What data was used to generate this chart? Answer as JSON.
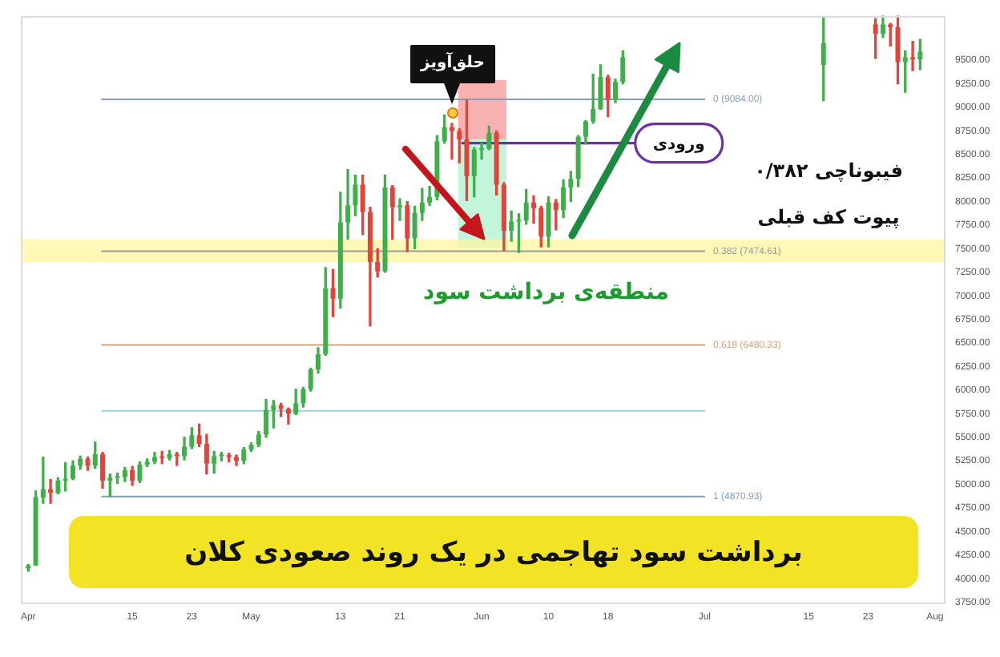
{
  "chart_data": {
    "type": "candlestick",
    "title": "برداشت سود تهاجمی در یک روند صعودی کلان",
    "x": [
      "--04-01",
      "--04-02",
      "--04-03",
      "--04-04",
      "--04-05",
      "--04-06",
      "--04-07",
      "--04-08",
      "--04-09",
      "--04-10",
      "--04-11",
      "--04-12",
      "--04-13",
      "--04-14",
      "--04-15",
      "--04-16",
      "--04-17",
      "--04-18",
      "--04-19",
      "--04-20",
      "--04-21",
      "--04-22",
      "--04-23",
      "--04-24",
      "--04-25",
      "--04-26",
      "--04-27",
      "--04-28",
      "--04-29",
      "--04-30",
      "--05-01",
      "--05-02",
      "--05-03",
      "--05-04",
      "--05-05",
      "--05-06",
      "--05-07",
      "--05-08",
      "--05-09",
      "--05-10",
      "--05-11",
      "--05-12",
      "--05-13",
      "--05-14",
      "--05-15",
      "--05-16",
      "--05-17",
      "--05-18",
      "--05-19",
      "--05-20",
      "--05-21",
      "--05-22",
      "--05-23",
      "--05-24",
      "--05-25",
      "--05-26",
      "--05-27",
      "--05-28",
      "--05-29",
      "--05-30",
      "--05-31",
      "--06-01",
      "--06-02",
      "--06-03",
      "--06-04",
      "--06-05",
      "--06-06",
      "--06-07",
      "--06-08",
      "--06-09",
      "--06-10",
      "--06-11",
      "--06-12",
      "--06-13",
      "--06-14",
      "--06-15",
      "--06-16",
      "--06-17",
      "--06-18",
      "--06-19",
      "--06-20",
      "--07-17",
      "--07-24",
      "--07-25",
      "--07-26",
      "--07-27",
      "--07-28",
      "--07-29",
      "--07-30"
    ],
    "ohlc": [
      [
        4110,
        4150,
        4080,
        4140
      ],
      [
        4140,
        4930,
        4140,
        4860
      ],
      [
        4860,
        5290,
        4800,
        4950
      ],
      [
        4950,
        5050,
        4800,
        4910
      ],
      [
        4910,
        5070,
        4900,
        5040
      ],
      [
        5040,
        5230,
        4930,
        5060
      ],
      [
        5060,
        5250,
        5050,
        5200
      ],
      [
        5200,
        5300,
        5160,
        5270
      ],
      [
        5270,
        5290,
        5150,
        5200
      ],
      [
        5200,
        5450,
        5170,
        5320
      ],
      [
        5320,
        5340,
        4960,
        5040
      ],
      [
        5040,
        5110,
        4871,
        5070
      ],
      [
        5070,
        5120,
        5010,
        5080
      ],
      [
        5080,
        5180,
        5030,
        5150
      ],
      [
        5150,
        5190,
        4990,
        5040
      ],
      [
        5040,
        5240,
        5020,
        5210
      ],
      [
        5210,
        5270,
        5190,
        5240
      ],
      [
        5240,
        5340,
        5220,
        5290
      ],
      [
        5290,
        5350,
        5220,
        5280
      ],
      [
        5280,
        5360,
        5260,
        5320
      ],
      [
        5320,
        5340,
        5200,
        5300
      ],
      [
        5300,
        5500,
        5260,
        5400
      ],
      [
        5400,
        5600,
        5380,
        5520
      ],
      [
        5520,
        5640,
        5400,
        5430
      ],
      [
        5430,
        5530,
        5110,
        5220
      ],
      [
        5220,
        5350,
        5120,
        5300
      ],
      [
        5300,
        5340,
        5250,
        5310
      ],
      [
        5310,
        5330,
        5240,
        5290
      ],
      [
        5290,
        5310,
        5200,
        5250
      ],
      [
        5250,
        5390,
        5220,
        5370
      ],
      [
        5370,
        5440,
        5350,
        5420
      ],
      [
        5420,
        5560,
        5400,
        5530
      ],
      [
        5530,
        5900,
        5500,
        5790
      ],
      [
        5790,
        5890,
        5600,
        5840
      ],
      [
        5840,
        5860,
        5720,
        5800
      ],
      [
        5800,
        5810,
        5640,
        5750
      ],
      [
        5750,
        6010,
        5740,
        5860
      ],
      [
        5860,
        6030,
        5820,
        6010
      ],
      [
        6010,
        6230,
        5990,
        6220
      ],
      [
        6220,
        6450,
        6180,
        6380
      ],
      [
        6380,
        7300,
        6370,
        7080
      ],
      [
        7080,
        7280,
        6780,
        6970
      ],
      [
        6970,
        8100,
        6870,
        7780
      ],
      [
        7780,
        8340,
        7600,
        7960
      ],
      [
        7960,
        8280,
        7850,
        8180
      ],
      [
        8180,
        8280,
        7650,
        7890
      ],
      [
        7890,
        7940,
        6680,
        7360
      ],
      [
        7360,
        7500,
        7200,
        7260
      ],
      [
        7260,
        8280,
        7250,
        8150
      ],
      [
        8150,
        8170,
        7600,
        7940
      ],
      [
        7940,
        8030,
        7800,
        7960
      ],
      [
        7960,
        8000,
        7470,
        7610
      ],
      [
        7610,
        7950,
        7500,
        7880
      ],
      [
        7880,
        8140,
        7800,
        7990
      ],
      [
        7990,
        8160,
        7960,
        8050
      ],
      [
        8050,
        8700,
        8020,
        8640
      ],
      [
        8640,
        8920,
        8620,
        8790
      ],
      [
        8790,
        8830,
        8450,
        8750
      ],
      [
        8750,
        8770,
        8410,
        8660
      ],
      [
        8660,
        9080,
        8010,
        8270
      ],
      [
        8270,
        8570,
        8050,
        8550
      ],
      [
        8550,
        8620,
        8450,
        8560
      ],
      [
        8560,
        8800,
        8550,
        8730
      ],
      [
        8730,
        8750,
        8070,
        8180
      ],
      [
        8180,
        8200,
        7480,
        7690
      ],
      [
        7690,
        7900,
        7580,
        7790
      ],
      [
        7790,
        7870,
        7460,
        7800
      ],
      [
        7800,
        8130,
        7760,
        7990
      ],
      [
        7990,
        8060,
        7770,
        7930
      ],
      [
        7930,
        7950,
        7520,
        7630
      ],
      [
        7630,
        8050,
        7520,
        7990
      ],
      [
        7990,
        8020,
        7700,
        7910
      ],
      [
        7910,
        8230,
        7830,
        8150
      ],
      [
        8150,
        8320,
        8000,
        8240
      ],
      [
        8240,
        8700,
        8160,
        8690
      ],
      [
        8690,
        8860,
        8610,
        8850
      ],
      [
        8850,
        9350,
        8830,
        8980
      ],
      [
        8980,
        9450,
        8980,
        9320
      ],
      [
        9320,
        9340,
        8900,
        9080
      ],
      [
        9080,
        9300,
        9050,
        9270
      ],
      [
        9270,
        9600,
        9250,
        9530
      ],
      [
        9450,
        9950,
        9070,
        9680
      ],
      [
        9880,
        9940,
        9520,
        9780
      ],
      [
        9780,
        9970,
        9740,
        9880
      ],
      [
        9880,
        9890,
        9650,
        9850
      ],
      [
        9850,
        9970,
        9250,
        9480
      ],
      [
        9480,
        9600,
        9160,
        9530
      ],
      [
        9530,
        9700,
        9390,
        9510
      ],
      [
        9510,
        9720,
        9400,
        9590
      ]
    ],
    "colors": [
      "#3faf4a",
      "#3faf4a",
      "#3faf4a",
      "#e2433b",
      "#3faf4a",
      "#3faf4a",
      "#3faf4a",
      "#3faf4a",
      "#e2433b",
      "#3faf4a",
      "#e2433b",
      "#3faf4a",
      "#3faf4a",
      "#3faf4a",
      "#e2433b",
      "#3faf4a",
      "#3faf4a",
      "#3faf4a",
      "#e2433b",
      "#3faf4a",
      "#e2433b",
      "#3faf4a",
      "#3faf4a",
      "#e2433b",
      "#e2433b",
      "#3faf4a",
      "#3faf4a",
      "#e2433b",
      "#e2433b",
      "#3faf4a",
      "#3faf4a",
      "#3faf4a",
      "#3faf4a",
      "#3faf4a",
      "#e2433b",
      "#e2433b",
      "#3faf4a",
      "#3faf4a",
      "#3faf4a",
      "#3faf4a",
      "#3faf4a",
      "#e2433b",
      "#3faf4a",
      "#3faf4a",
      "#3faf4a",
      "#e2433b",
      "#e2433b",
      "#e2433b",
      "#3faf4a",
      "#e2433b",
      "#3faf4a",
      "#e2433b",
      "#3faf4a",
      "#3faf4a",
      "#3faf4a",
      "#3faf4a",
      "#3faf4a",
      "#e2433b",
      "#e2433b",
      "#e2433b",
      "#3faf4a",
      "#3faf4a",
      "#3faf4a",
      "#e2433b",
      "#e2433b",
      "#3faf4a",
      "#3faf4a",
      "#3faf4a",
      "#e2433b",
      "#e2433b",
      "#3faf4a",
      "#e2433b",
      "#3faf4a",
      "#3faf4a",
      "#3faf4a",
      "#3faf4a",
      "#3faf4a",
      "#3faf4a",
      "#e2433b",
      "#3faf4a",
      "#3faf4a",
      "#3faf4a",
      "#e2433b",
      "#3faf4a",
      "#e2433b",
      "#e2433b",
      "#3faf4a",
      "#e2433b",
      "#3faf4a"
    ],
    "series": [
      {
        "type": "line",
        "x": [
          "--05-29T10:00",
          "--06-21T16:00"
        ],
        "values": [
          8620,
          8620
        ],
        "color": "#6b32a8"
      }
    ],
    "xlim": [
      "--03-31",
      "--08-02T10:00"
    ],
    "xticks": [
      {
        "value": "--04-01",
        "label": "Apr"
      },
      {
        "value": "--04-15",
        "label": "15"
      },
      {
        "value": "--04-23",
        "label": "23"
      },
      {
        "value": "--05-01",
        "label": "May"
      },
      {
        "value": "--05-13",
        "label": "13"
      },
      {
        "value": "--05-21",
        "label": "21"
      },
      {
        "value": "--06-01",
        "label": "Jun"
      },
      {
        "value": "--06-10",
        "label": "10"
      },
      {
        "value": "--06-18",
        "label": "18"
      },
      {
        "value": "--07-01",
        "label": "Jul"
      },
      {
        "value": "--07-15",
        "label": "15"
      },
      {
        "value": "--07-23",
        "label": "23"
      },
      {
        "value": "--08-01",
        "label": "Aug"
      }
    ],
    "ylim": [
      3730,
      9975
    ],
    "yticks": [
      {
        "value": 3750,
        "label": "3750.00"
      },
      {
        "value": 4000,
        "label": "4000.00"
      },
      {
        "value": 4250,
        "label": "4250.00"
      },
      {
        "value": 4500,
        "label": "4500.00"
      },
      {
        "value": 4750,
        "label": "4750.00"
      },
      {
        "value": 5000,
        "label": "5000.00"
      },
      {
        "value": 5250,
        "label": "5250.00"
      },
      {
        "value": 5500,
        "label": "5500.00"
      },
      {
        "value": 5750,
        "label": "5750.00"
      },
      {
        "value": 6000,
        "label": "6000.00"
      },
      {
        "value": 6250,
        "label": "6250.00"
      },
      {
        "value": 6500,
        "label": "6500.00"
      },
      {
        "value": 6750,
        "label": "6750.00"
      },
      {
        "value": 7000,
        "label": "7000.00"
      },
      {
        "value": 7250,
        "label": "7250.00"
      },
      {
        "value": 7500,
        "label": "7500.00"
      },
      {
        "value": 7750,
        "label": "7750.00"
      },
      {
        "value": 8000,
        "label": "8000.00"
      },
      {
        "value": 8250,
        "label": "8250.00"
      },
      {
        "value": 8500,
        "label": "8500.00"
      },
      {
        "value": 8750,
        "label": "8750.00"
      },
      {
        "value": 9000,
        "label": "9000.00"
      },
      {
        "value": 9250,
        "label": "9250.00"
      },
      {
        "value": 9500,
        "label": "9500.00"
      }
    ],
    "ref_lines": [
      {
        "axis": "y",
        "value": 9084,
        "label": "0 (9084.00)",
        "color": "#8a9cc6"
      },
      {
        "axis": "y",
        "value": 7474.61,
        "label": "0.382 (7474.61)",
        "color": "#9a9a9a"
      },
      {
        "axis": "y",
        "value": 6480.33,
        "label": "0.618 (6480.33)",
        "color": "#d4a285"
      },
      {
        "axis": "y",
        "value": 5780,
        "color": "#9fd2de"
      },
      {
        "axis": "y",
        "value": 4870.93,
        "label": "1 (4870.93)",
        "color": "#7f9fca"
      }
    ],
    "bands": [
      {
        "axis": "y",
        "from": 7355,
        "to": 7600,
        "label": "منطقه‌ی برداشت سود",
        "color": "#fff59a"
      }
    ],
    "annotations": [
      "حلق‌آویز",
      {
        "text": "ورودی",
        "x": "--06-21T16:00",
        "y": 8620
      },
      "فیبوناچی ۰/۳۸۲",
      "پیوت کف قبلی"
    ]
  }
}
